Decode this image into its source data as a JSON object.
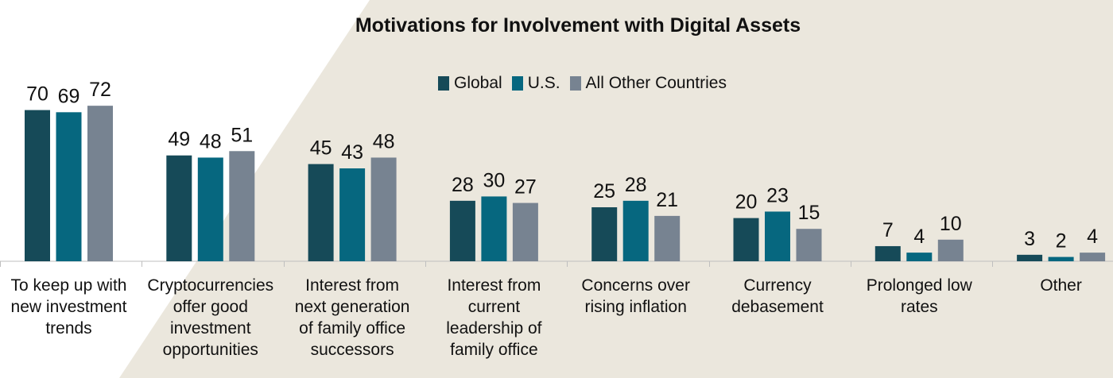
{
  "chart_data": {
    "type": "bar",
    "title": "Motivations for Involvement with Digital Assets",
    "xlabel": "",
    "ylabel": "",
    "ylim": [
      0,
      80
    ],
    "grid": false,
    "legend_position": "top",
    "categories": [
      [
        "To keep up with",
        "new investment",
        "trends"
      ],
      [
        "Cryptocurrencies",
        "offer good",
        "investment",
        "opportunities"
      ],
      [
        "Interest from",
        "next generation",
        "of family office",
        "successors"
      ],
      [
        "Interest from",
        "current",
        "leadership of",
        "family office"
      ],
      [
        "Concerns over",
        "rising inflation"
      ],
      [
        "Currency",
        "debasement"
      ],
      [
        "Prolonged low",
        "rates"
      ],
      [
        "Other"
      ]
    ],
    "series": [
      {
        "name": "Global",
        "color": "#164a58",
        "values": [
          70,
          49,
          45,
          28,
          25,
          20,
          7,
          3
        ]
      },
      {
        "name": "U.S.",
        "color": "#06677f",
        "values": [
          69,
          48,
          43,
          30,
          28,
          23,
          4,
          2
        ]
      },
      {
        "name": "All Other Countries",
        "color": "#778391",
        "values": [
          72,
          51,
          48,
          27,
          21,
          15,
          10,
          4
        ]
      }
    ]
  },
  "colors": {
    "background_band": "#ebe7dd",
    "axis": "#bfbfbf",
    "text": "#111111"
  }
}
